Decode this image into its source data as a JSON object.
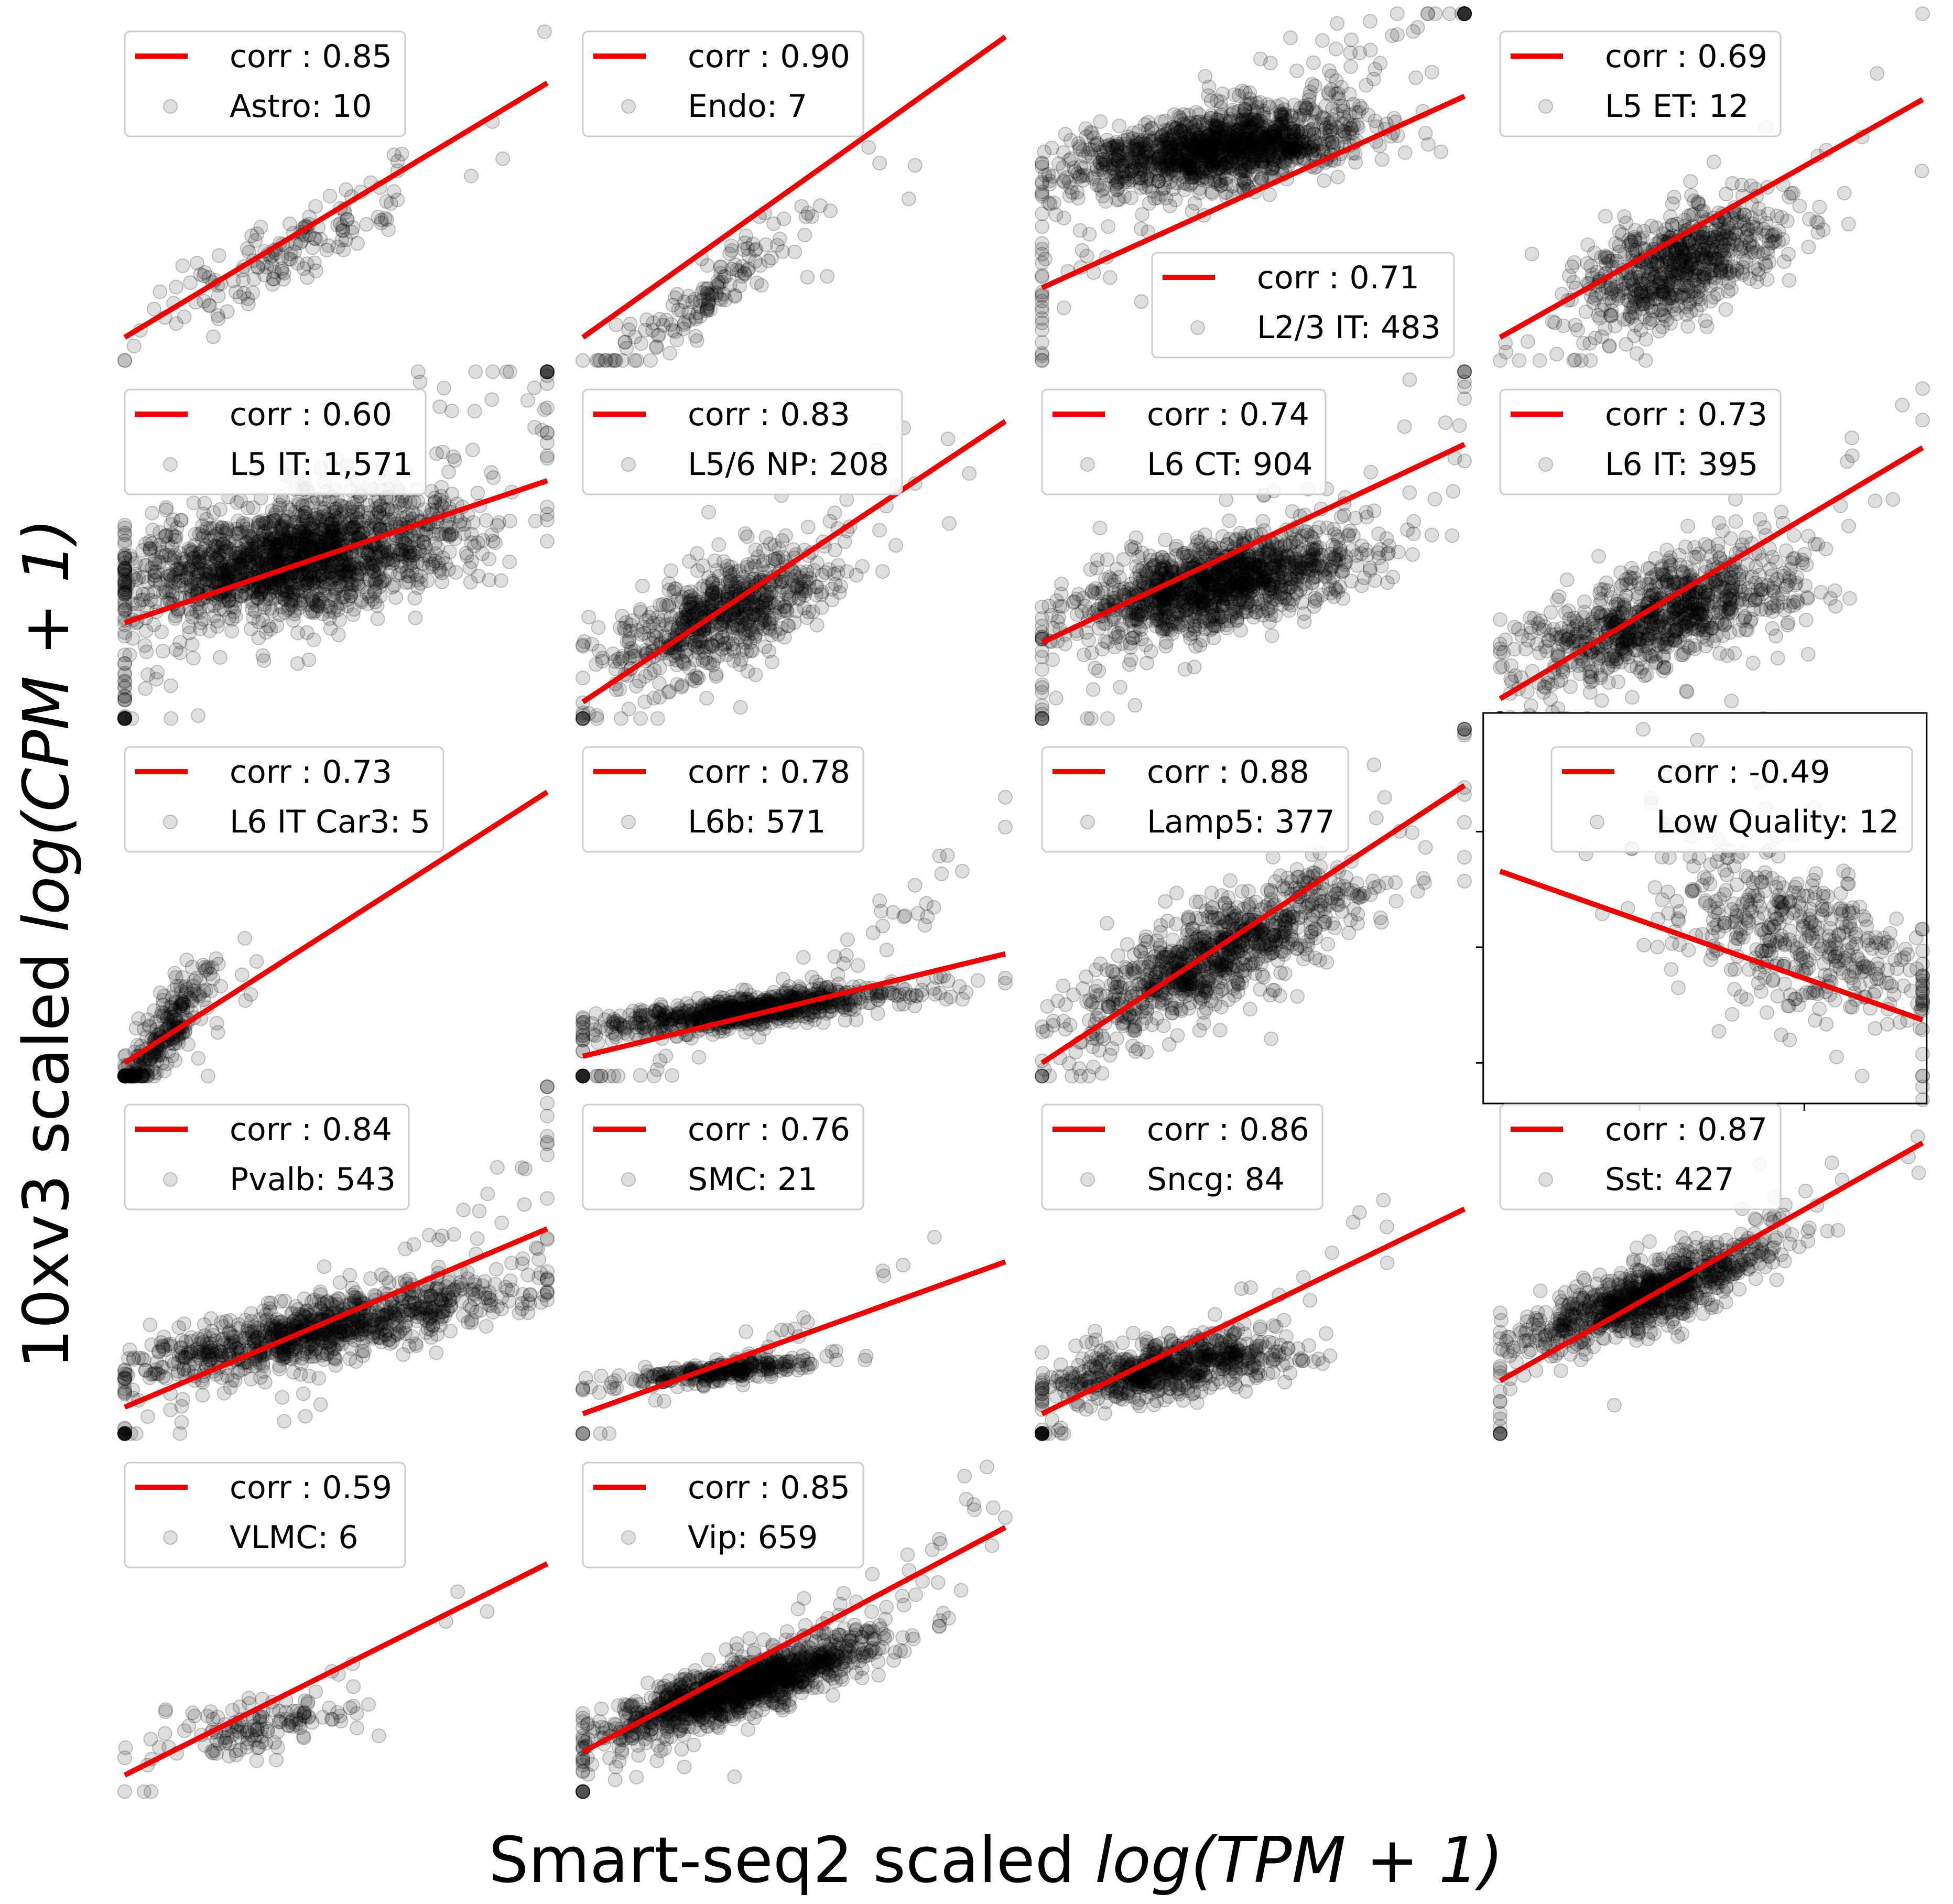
{
  "figure": {
    "xlabel_prefix": "Smart-seq2 scaled ",
    "xlabel_math": "log(TPM + 1)",
    "ylabel_prefix": "10xv3 scaled ",
    "ylabel_math": "log(CPM + 1)"
  },
  "legend_line_label_template": "corr : {corr}",
  "colors": {
    "fit_line": "#ee0000",
    "points": "#000000",
    "legend_border": "#cccccc"
  },
  "chart_data": [
    {
      "type": "scatter",
      "cell_type": "Astro",
      "count": "10",
      "corr": "0.85",
      "corr_label": "corr : 0.85",
      "legend_label": "Astro: 10",
      "fit": [
        [
          0,
          0.05
        ],
        [
          1,
          0.82
        ]
      ],
      "cluster": [
        0.38,
        0.3,
        0.16,
        0.07,
        0.18
      ],
      "n": 150
    },
    {
      "type": "scatter",
      "cell_type": "Endo",
      "count": "7",
      "corr": "0.90",
      "corr_label": "corr : 0.90",
      "legend_label": "Endo: 7",
      "fit": [
        [
          0,
          0.05
        ],
        [
          1,
          0.96
        ]
      ],
      "cluster": [
        0.3,
        0.18,
        0.12,
        0.07,
        0.22
      ],
      "n": 150
    },
    {
      "type": "scatter",
      "cell_type": "L2/3 IT",
      "count": "483",
      "corr": "0.71",
      "corr_label": "corr : 0.71",
      "legend_label": "L2/3 IT: 483",
      "fit": [
        [
          0,
          0.2
        ],
        [
          1,
          0.78
        ]
      ],
      "cluster": [
        0.42,
        0.62,
        0.17,
        0.07,
        0.05
      ],
      "n": 1400
    },
    {
      "type": "scatter",
      "cell_type": "L5 ET",
      "count": "12",
      "corr": "0.69",
      "corr_label": "corr : 0.69",
      "legend_label": "L5 ET: 12",
      "fit": [
        [
          0,
          0.05
        ],
        [
          1,
          0.77
        ]
      ],
      "cluster": [
        0.42,
        0.27,
        0.12,
        0.1,
        0.08
      ],
      "n": 700
    },
    {
      "type": "scatter",
      "cell_type": "L5 IT",
      "count": "1,571",
      "corr": "0.60",
      "corr_label": "corr : 0.60",
      "legend_label": "L5 IT: 1,571",
      "fit": [
        [
          0,
          0.27
        ],
        [
          1,
          0.7
        ]
      ],
      "cluster": [
        0.4,
        0.46,
        0.2,
        0.11,
        0.06
      ],
      "n": 1800
    },
    {
      "type": "scatter",
      "cell_type": "L5/6 NP",
      "count": "208",
      "corr": "0.83",
      "corr_label": "corr : 0.83",
      "legend_label": "L5/6 NP: 208",
      "fit": [
        [
          0,
          0.03
        ],
        [
          1,
          0.88
        ]
      ],
      "cluster": [
        0.33,
        0.29,
        0.13,
        0.09,
        0.1
      ],
      "n": 700
    },
    {
      "type": "scatter",
      "cell_type": "L6 CT",
      "count": "904",
      "corr": "0.74",
      "corr_label": "corr : 0.74",
      "legend_label": "L6 CT: 904",
      "fit": [
        [
          0,
          0.21
        ],
        [
          1,
          0.81
        ]
      ],
      "cluster": [
        0.42,
        0.39,
        0.17,
        0.08,
        0.08
      ],
      "n": 1300
    },
    {
      "type": "scatter",
      "cell_type": "L6 IT",
      "count": "395",
      "corr": "0.73",
      "corr_label": "corr : 0.73",
      "legend_label": "L6 IT: 395",
      "fit": [
        [
          0,
          0.04
        ],
        [
          1,
          0.8
        ]
      ],
      "cluster": [
        0.38,
        0.29,
        0.15,
        0.1,
        0.1
      ],
      "n": 900
    },
    {
      "type": "scatter",
      "cell_type": "L6 IT Car3",
      "count": "5",
      "corr": "0.73",
      "corr_label": "corr : 0.73",
      "legend_label": "L6 IT Car3: 5",
      "fit": [
        [
          0,
          0.02
        ],
        [
          1,
          0.84
        ]
      ],
      "cluster": [
        0.08,
        0.08,
        0.06,
        0.06,
        0.2
      ],
      "n": 300
    },
    {
      "type": "scatter",
      "cell_type": "L6b",
      "count": "571",
      "corr": "0.78",
      "corr_label": "corr : 0.78",
      "legend_label": "L6b: 571",
      "fit": [
        [
          0,
          0.04
        ],
        [
          1,
          0.35
        ]
      ],
      "cluster": [
        0.4,
        0.18,
        0.18,
        0.03,
        0.05
      ],
      "n": 800
    },
    {
      "type": "scatter",
      "cell_type": "Lamp5",
      "count": "377",
      "corr": "0.88",
      "corr_label": "corr : 0.88",
      "legend_label": "Lamp5: 377",
      "fit": [
        [
          0,
          0.02
        ],
        [
          1,
          0.86
        ]
      ],
      "cluster": [
        0.42,
        0.35,
        0.16,
        0.09,
        0.15
      ],
      "n": 900
    },
    {
      "type": "scatter",
      "cell_type": "Low Quality",
      "count": "12",
      "corr": "-0.49",
      "corr_label": "corr : -0.49",
      "legend_label": "Low Quality: 12",
      "fit": [
        [
          0,
          0.6
        ],
        [
          1,
          0.15
        ]
      ],
      "cluster": [
        0.7,
        0.4,
        0.16,
        0.14,
        -0.1
      ],
      "n": 450
    },
    {
      "type": "scatter",
      "cell_type": "Pvalb",
      "count": "543",
      "corr": "0.84",
      "corr_label": "corr : 0.84",
      "legend_label": "Pvalb: 543",
      "fit": [
        [
          0,
          0.06
        ],
        [
          1,
          0.6
        ]
      ],
      "cluster": [
        0.48,
        0.3,
        0.22,
        0.06,
        0.1
      ],
      "n": 1000
    },
    {
      "type": "scatter",
      "cell_type": "SMC",
      "count": "21",
      "corr": "0.76",
      "corr_label": "corr : 0.76",
      "legend_label": "SMC: 21",
      "fit": [
        [
          0,
          0.04
        ],
        [
          1,
          0.5
        ]
      ],
      "cluster": [
        0.33,
        0.17,
        0.12,
        0.02,
        0.03
      ],
      "n": 300
    },
    {
      "type": "scatter",
      "cell_type": "Sncg",
      "count": "84",
      "corr": "0.86",
      "corr_label": "corr : 0.86",
      "legend_label": "Sncg: 84",
      "fit": [
        [
          0,
          0.04
        ],
        [
          1,
          0.66
        ]
      ],
      "cluster": [
        0.3,
        0.18,
        0.15,
        0.05,
        0.05
      ],
      "n": 700
    },
    {
      "type": "scatter",
      "cell_type": "Sst",
      "count": "427",
      "corr": "0.87",
      "corr_label": "corr : 0.87",
      "legend_label": "Sst: 427",
      "fit": [
        [
          0,
          0.14
        ],
        [
          1,
          0.86
        ]
      ],
      "cluster": [
        0.35,
        0.4,
        0.15,
        0.06,
        0.12
      ],
      "n": 900
    },
    {
      "type": "scatter",
      "cell_type": "VLMC",
      "count": "6",
      "corr": "0.59",
      "corr_label": "corr : 0.59",
      "legend_label": "VLMC: 6",
      "fit": [
        [
          0,
          0.03
        ],
        [
          1,
          0.67
        ]
      ],
      "cluster": [
        0.32,
        0.18,
        0.12,
        0.05,
        0.05
      ],
      "n": 150
    },
    {
      "type": "scatter",
      "cell_type": "Vip",
      "count": "659",
      "corr": "0.85",
      "corr_label": "corr : 0.85",
      "legend_label": "Vip: 659",
      "fit": [
        [
          0,
          0.1
        ],
        [
          1,
          0.78
        ]
      ],
      "cluster": [
        0.38,
        0.3,
        0.16,
        0.05,
        0.12
      ],
      "n": 1300
    }
  ]
}
